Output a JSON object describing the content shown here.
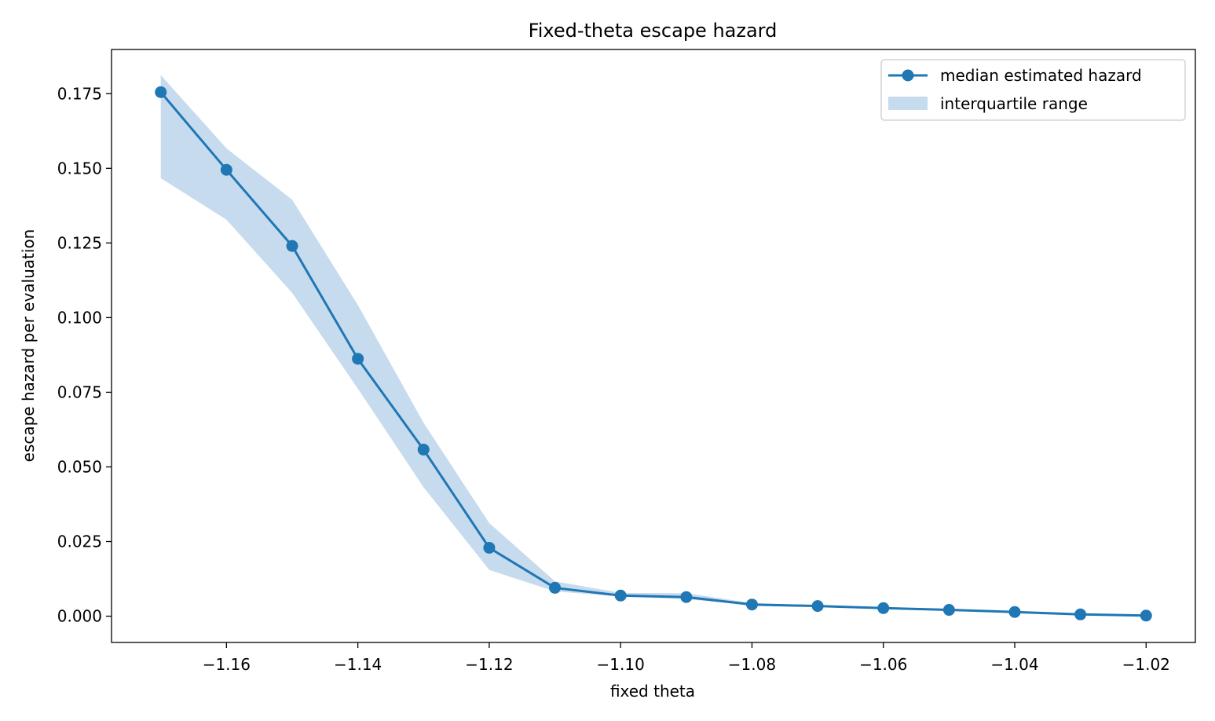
{
  "chart_data": {
    "type": "line",
    "title": "Fixed-theta escape hazard",
    "xlabel": "fixed theta",
    "ylabel": "escape hazard per evaluation",
    "x": [
      -1.17,
      -1.16,
      -1.15,
      -1.14,
      -1.13,
      -1.12,
      -1.11,
      -1.1,
      -1.09,
      -1.08,
      -1.07,
      -1.06,
      -1.05,
      -1.04,
      -1.03,
      -1.02
    ],
    "series": [
      {
        "name": "median estimated hazard",
        "values": [
          0.1755,
          0.1495,
          0.124,
          0.0862,
          0.0558,
          0.0229,
          0.0095,
          0.0069,
          0.0064,
          0.0039,
          0.0034,
          0.0027,
          0.0021,
          0.0014,
          0.0006,
          0.0002
        ]
      }
    ],
    "band": {
      "name": "interquartile range",
      "lower": [
        0.1467,
        0.1328,
        0.1083,
        0.0762,
        0.0432,
        0.0155,
        0.0083,
        0.0066,
        0.0057,
        0.0037,
        0.0032,
        0.0025,
        0.0019,
        0.0012,
        0.0004,
        0.0001
      ],
      "upper": [
        0.1812,
        0.1567,
        0.1395,
        0.1042,
        0.0648,
        0.0312,
        0.0117,
        0.0078,
        0.0077,
        0.0044,
        0.0037,
        0.003,
        0.0024,
        0.0017,
        0.0008,
        0.0004
      ]
    },
    "xticks": [
      -1.16,
      -1.14,
      -1.12,
      -1.1,
      -1.08,
      -1.06,
      -1.04,
      -1.02
    ],
    "xtick_labels": [
      "−1.16",
      "−1.14",
      "−1.12",
      "−1.10",
      "−1.08",
      "−1.06",
      "−1.04",
      "−1.02"
    ],
    "yticks": [
      0.0,
      0.025,
      0.05,
      0.075,
      0.1,
      0.125,
      0.15,
      0.175
    ],
    "ytick_labels": [
      "0.000",
      "0.025",
      "0.050",
      "0.075",
      "0.100",
      "0.125",
      "0.150",
      "0.175"
    ],
    "xlim": [
      -1.1775,
      -1.0125
    ],
    "ylim": [
      -0.0088,
      0.1898
    ],
    "grid": false,
    "legend_position": "top-right",
    "colors": {
      "line": "#1f77b4",
      "band": "#c6dbed"
    }
  }
}
